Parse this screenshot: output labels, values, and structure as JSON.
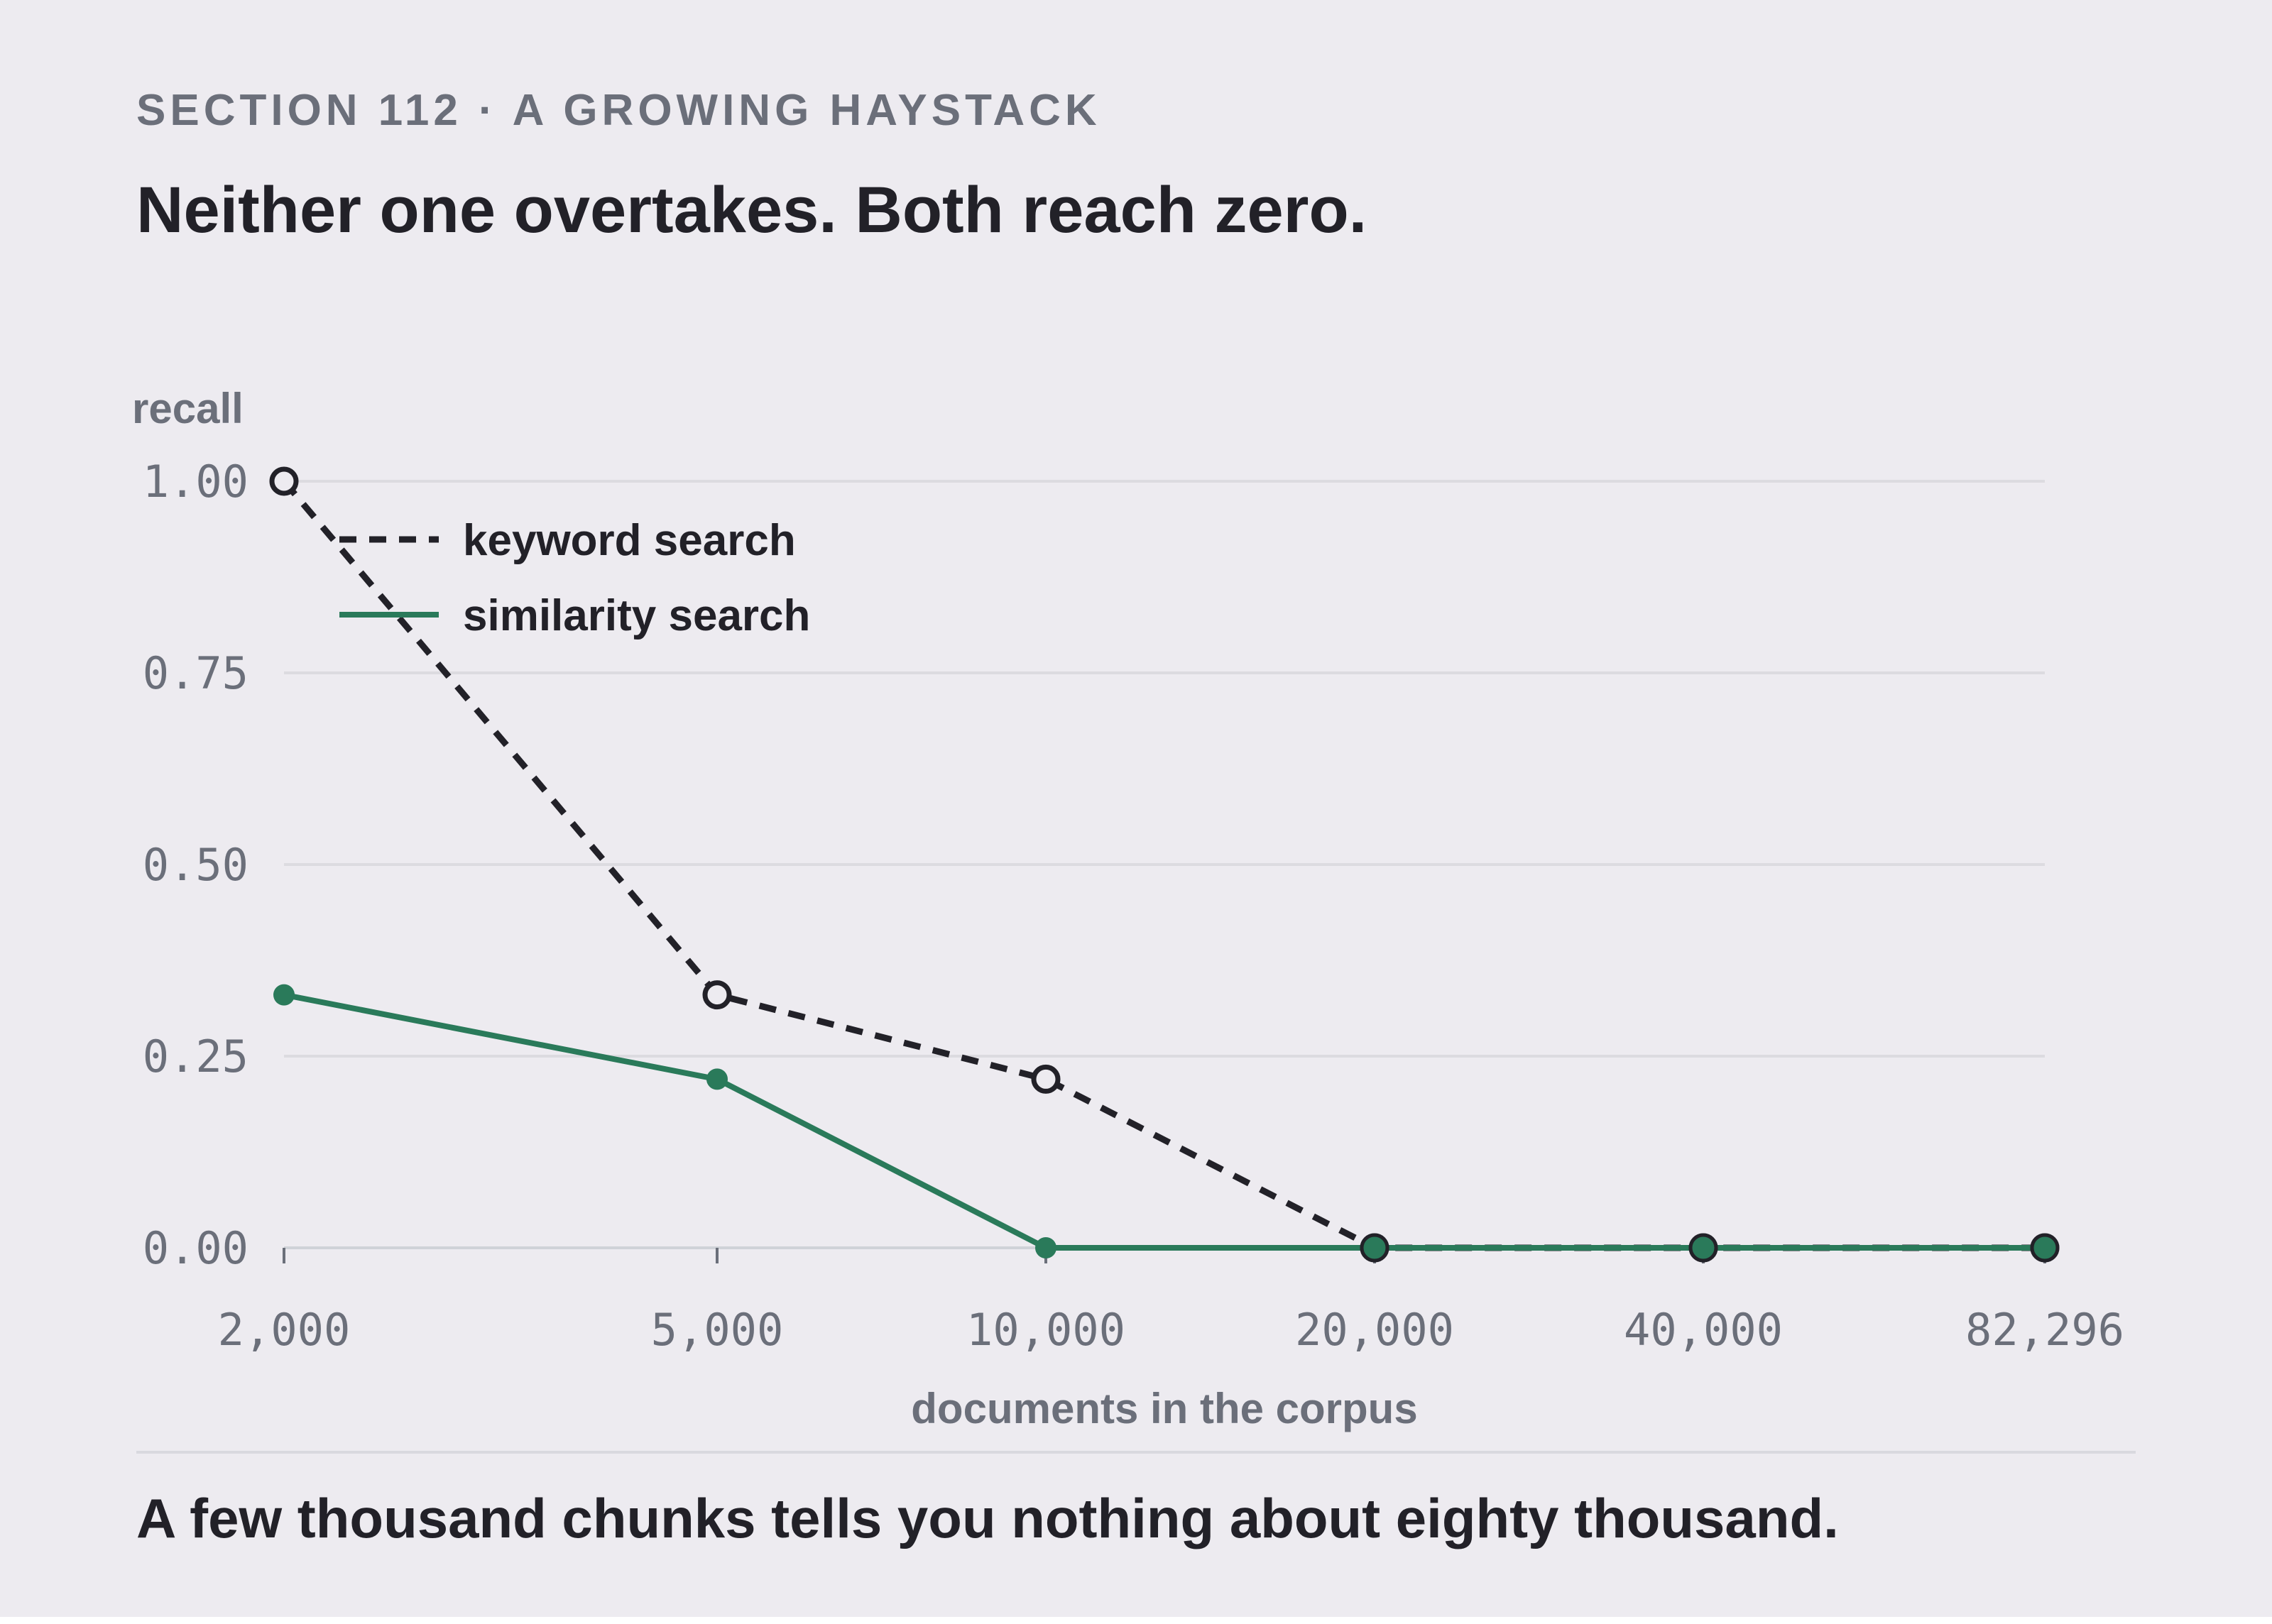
{
  "section_label": "SECTION 112 · A GROWING HAYSTACK",
  "headline": "Neither one overtakes. Both reach zero.",
  "takeaway": "A few thousand chunks tells you nothing about eighty thousand.",
  "colors": {
    "background": "#edebf0",
    "keyword": "#222128",
    "similarity": "#2a7a5a",
    "grid": "#dcdbe0",
    "muted": "#6b6f7a"
  },
  "chart_data": {
    "type": "line",
    "title": "",
    "xlabel": "documents in the corpus",
    "ylabel": "recall",
    "categories": [
      "2,000",
      "5,000",
      "10,000",
      "20,000",
      "40,000",
      "82,296"
    ],
    "x": [
      2000,
      5000,
      10000,
      20000,
      40000,
      82296
    ],
    "x_scale": "log",
    "ylim": [
      0,
      1
    ],
    "yticks": [
      "0.00",
      "0.25",
      "0.50",
      "0.75",
      "1.00"
    ],
    "grid": true,
    "legend_position": "top-left",
    "series": [
      {
        "name": "keyword search",
        "style": "dashed",
        "marker": "hollow-circle",
        "color": "#222128",
        "values": [
          1.0,
          0.33,
          0.22,
          0.0,
          0.0,
          0.0
        ]
      },
      {
        "name": "similarity search",
        "style": "solid",
        "marker": "filled-circle",
        "color": "#2a7a5a",
        "values": [
          0.33,
          0.22,
          0.0,
          0.0,
          0.0,
          0.0
        ]
      }
    ]
  }
}
